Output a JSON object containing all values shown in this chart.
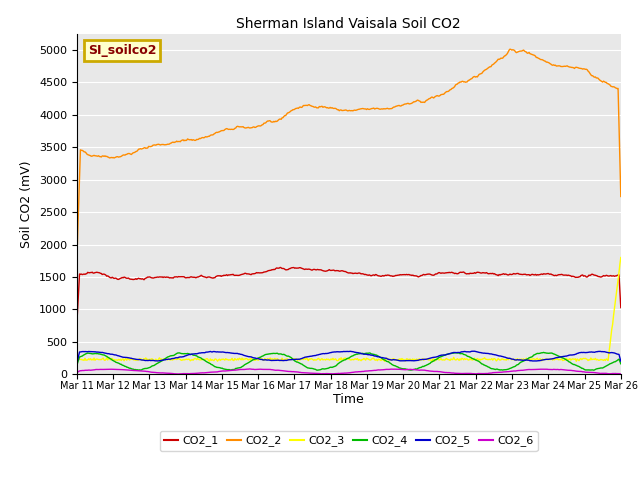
{
  "title": "Sherman Island Vaisala Soil CO2",
  "ylabel": "Soil CO2 (mV)",
  "xlabel": "Time",
  "legend_box_label": "SI_soilco2",
  "legend_box_facecolor": "#ffffcc",
  "legend_box_edgecolor": "#ccaa00",
  "legend_box_textcolor": "#880000",
  "ylim": [
    0,
    5250
  ],
  "yticks": [
    0,
    500,
    1000,
    1500,
    2000,
    2500,
    3000,
    3500,
    4000,
    4500,
    5000
  ],
  "xtick_labels": [
    "Mar 11",
    "Mar 12",
    "Mar 13",
    "Mar 14",
    "Mar 15",
    "Mar 16",
    "Mar 17",
    "Mar 18",
    "Mar 19",
    "Mar 20",
    "Mar 21",
    "Mar 22",
    "Mar 23",
    "Mar 24",
    "Mar 25",
    "Mar 26"
  ],
  "background_color": "#e8e8e8",
  "line_colors": {
    "CO2_1": "#cc0000",
    "CO2_2": "#ff8c00",
    "CO2_3": "#ffff00",
    "CO2_4": "#00bb00",
    "CO2_5": "#0000cc",
    "CO2_6": "#cc00cc"
  },
  "legend_entries": [
    "CO2_1",
    "CO2_2",
    "CO2_3",
    "CO2_4",
    "CO2_5",
    "CO2_6"
  ]
}
